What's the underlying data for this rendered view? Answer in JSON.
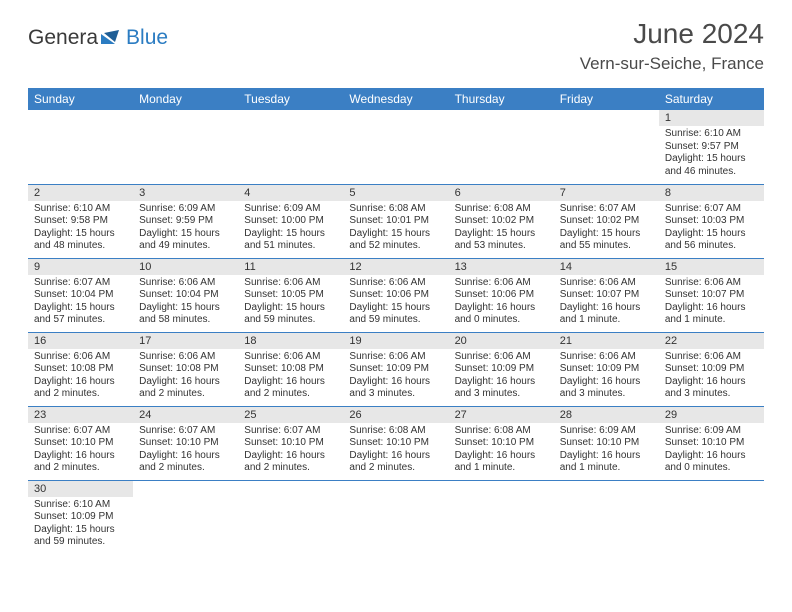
{
  "logo": {
    "part1": "Genera",
    "part2": "Blue"
  },
  "title": "June 2024",
  "location": "Vern-sur-Seiche, France",
  "colors": {
    "header_bg": "#3b7fc4",
    "header_text": "#ffffff",
    "daynum_bg": "#e7e7e7",
    "border": "#3b7fc4",
    "text": "#333333",
    "logo_gray": "#3a3a3a",
    "logo_blue": "#2b7cc2"
  },
  "weekdays": [
    "Sunday",
    "Monday",
    "Tuesday",
    "Wednesday",
    "Thursday",
    "Friday",
    "Saturday"
  ],
  "weeks": [
    [
      null,
      null,
      null,
      null,
      null,
      null,
      {
        "n": "1",
        "sr": "Sunrise: 6:10 AM",
        "ss": "Sunset: 9:57 PM",
        "d1": "Daylight: 15 hours",
        "d2": "and 46 minutes."
      }
    ],
    [
      {
        "n": "2",
        "sr": "Sunrise: 6:10 AM",
        "ss": "Sunset: 9:58 PM",
        "d1": "Daylight: 15 hours",
        "d2": "and 48 minutes."
      },
      {
        "n": "3",
        "sr": "Sunrise: 6:09 AM",
        "ss": "Sunset: 9:59 PM",
        "d1": "Daylight: 15 hours",
        "d2": "and 49 minutes."
      },
      {
        "n": "4",
        "sr": "Sunrise: 6:09 AM",
        "ss": "Sunset: 10:00 PM",
        "d1": "Daylight: 15 hours",
        "d2": "and 51 minutes."
      },
      {
        "n": "5",
        "sr": "Sunrise: 6:08 AM",
        "ss": "Sunset: 10:01 PM",
        "d1": "Daylight: 15 hours",
        "d2": "and 52 minutes."
      },
      {
        "n": "6",
        "sr": "Sunrise: 6:08 AM",
        "ss": "Sunset: 10:02 PM",
        "d1": "Daylight: 15 hours",
        "d2": "and 53 minutes."
      },
      {
        "n": "7",
        "sr": "Sunrise: 6:07 AM",
        "ss": "Sunset: 10:02 PM",
        "d1": "Daylight: 15 hours",
        "d2": "and 55 minutes."
      },
      {
        "n": "8",
        "sr": "Sunrise: 6:07 AM",
        "ss": "Sunset: 10:03 PM",
        "d1": "Daylight: 15 hours",
        "d2": "and 56 minutes."
      }
    ],
    [
      {
        "n": "9",
        "sr": "Sunrise: 6:07 AM",
        "ss": "Sunset: 10:04 PM",
        "d1": "Daylight: 15 hours",
        "d2": "and 57 minutes."
      },
      {
        "n": "10",
        "sr": "Sunrise: 6:06 AM",
        "ss": "Sunset: 10:04 PM",
        "d1": "Daylight: 15 hours",
        "d2": "and 58 minutes."
      },
      {
        "n": "11",
        "sr": "Sunrise: 6:06 AM",
        "ss": "Sunset: 10:05 PM",
        "d1": "Daylight: 15 hours",
        "d2": "and 59 minutes."
      },
      {
        "n": "12",
        "sr": "Sunrise: 6:06 AM",
        "ss": "Sunset: 10:06 PM",
        "d1": "Daylight: 15 hours",
        "d2": "and 59 minutes."
      },
      {
        "n": "13",
        "sr": "Sunrise: 6:06 AM",
        "ss": "Sunset: 10:06 PM",
        "d1": "Daylight: 16 hours",
        "d2": "and 0 minutes."
      },
      {
        "n": "14",
        "sr": "Sunrise: 6:06 AM",
        "ss": "Sunset: 10:07 PM",
        "d1": "Daylight: 16 hours",
        "d2": "and 1 minute."
      },
      {
        "n": "15",
        "sr": "Sunrise: 6:06 AM",
        "ss": "Sunset: 10:07 PM",
        "d1": "Daylight: 16 hours",
        "d2": "and 1 minute."
      }
    ],
    [
      {
        "n": "16",
        "sr": "Sunrise: 6:06 AM",
        "ss": "Sunset: 10:08 PM",
        "d1": "Daylight: 16 hours",
        "d2": "and 2 minutes."
      },
      {
        "n": "17",
        "sr": "Sunrise: 6:06 AM",
        "ss": "Sunset: 10:08 PM",
        "d1": "Daylight: 16 hours",
        "d2": "and 2 minutes."
      },
      {
        "n": "18",
        "sr": "Sunrise: 6:06 AM",
        "ss": "Sunset: 10:08 PM",
        "d1": "Daylight: 16 hours",
        "d2": "and 2 minutes."
      },
      {
        "n": "19",
        "sr": "Sunrise: 6:06 AM",
        "ss": "Sunset: 10:09 PM",
        "d1": "Daylight: 16 hours",
        "d2": "and 3 minutes."
      },
      {
        "n": "20",
        "sr": "Sunrise: 6:06 AM",
        "ss": "Sunset: 10:09 PM",
        "d1": "Daylight: 16 hours",
        "d2": "and 3 minutes."
      },
      {
        "n": "21",
        "sr": "Sunrise: 6:06 AM",
        "ss": "Sunset: 10:09 PM",
        "d1": "Daylight: 16 hours",
        "d2": "and 3 minutes."
      },
      {
        "n": "22",
        "sr": "Sunrise: 6:06 AM",
        "ss": "Sunset: 10:09 PM",
        "d1": "Daylight: 16 hours",
        "d2": "and 3 minutes."
      }
    ],
    [
      {
        "n": "23",
        "sr": "Sunrise: 6:07 AM",
        "ss": "Sunset: 10:10 PM",
        "d1": "Daylight: 16 hours",
        "d2": "and 2 minutes."
      },
      {
        "n": "24",
        "sr": "Sunrise: 6:07 AM",
        "ss": "Sunset: 10:10 PM",
        "d1": "Daylight: 16 hours",
        "d2": "and 2 minutes."
      },
      {
        "n": "25",
        "sr": "Sunrise: 6:07 AM",
        "ss": "Sunset: 10:10 PM",
        "d1": "Daylight: 16 hours",
        "d2": "and 2 minutes."
      },
      {
        "n": "26",
        "sr": "Sunrise: 6:08 AM",
        "ss": "Sunset: 10:10 PM",
        "d1": "Daylight: 16 hours",
        "d2": "and 2 minutes."
      },
      {
        "n": "27",
        "sr": "Sunrise: 6:08 AM",
        "ss": "Sunset: 10:10 PM",
        "d1": "Daylight: 16 hours",
        "d2": "and 1 minute."
      },
      {
        "n": "28",
        "sr": "Sunrise: 6:09 AM",
        "ss": "Sunset: 10:10 PM",
        "d1": "Daylight: 16 hours",
        "d2": "and 1 minute."
      },
      {
        "n": "29",
        "sr": "Sunrise: 6:09 AM",
        "ss": "Sunset: 10:10 PM",
        "d1": "Daylight: 16 hours",
        "d2": "and 0 minutes."
      }
    ],
    [
      {
        "n": "30",
        "sr": "Sunrise: 6:10 AM",
        "ss": "Sunset: 10:09 PM",
        "d1": "Daylight: 15 hours",
        "d2": "and 59 minutes."
      },
      null,
      null,
      null,
      null,
      null,
      null
    ]
  ]
}
